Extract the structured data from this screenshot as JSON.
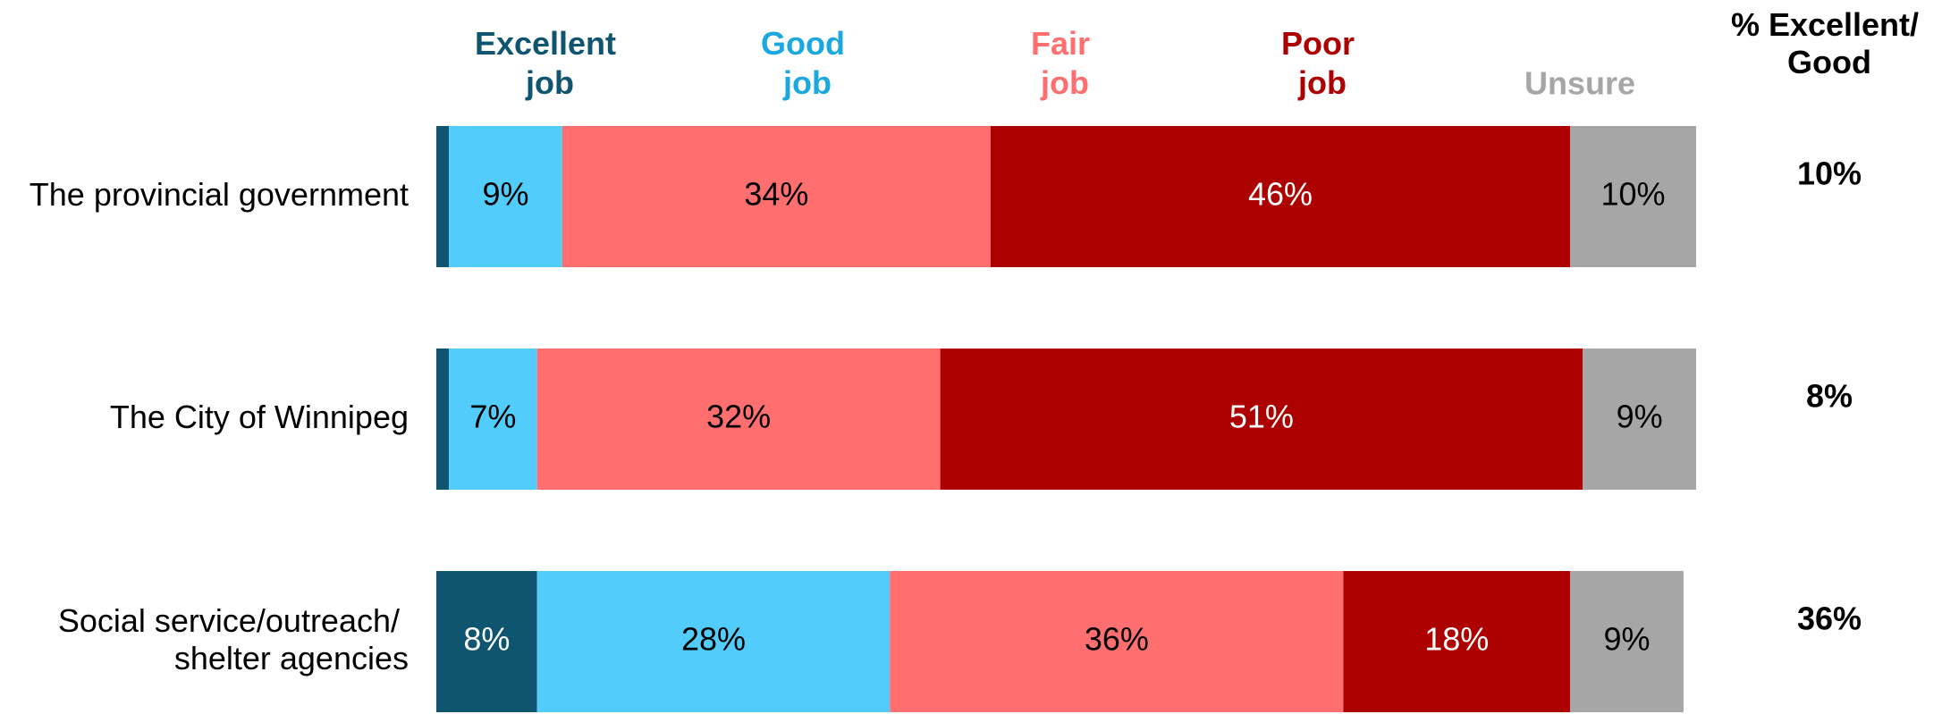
{
  "chart_data": {
    "type": "stacked-bar-horizontal",
    "categories": [
      "The provincial government",
      "The City of Winnipeg",
      "Social service/outreach/ shelter agencies"
    ],
    "series": [
      {
        "name": "Excellent job",
        "color": "#0f5570",
        "values": [
          1,
          1,
          8
        ],
        "value_labels": [
          null,
          null,
          "8%"
        ]
      },
      {
        "name": "Good job",
        "color": "#52cdfb",
        "values": [
          9,
          7,
          28
        ],
        "value_labels": [
          "9%",
          "7%",
          "28%"
        ]
      },
      {
        "name": "Fair job",
        "color": "#ff6f6f",
        "values": [
          34,
          32,
          36
        ],
        "value_labels": [
          "34%",
          "32%",
          "36%"
        ]
      },
      {
        "name": "Poor job",
        "color": "#ad0000",
        "values": [
          46,
          51,
          18
        ],
        "value_labels": [
          "46%",
          "51%",
          "18%"
        ]
      },
      {
        "name": "Unsure",
        "color": "#a6a6a6",
        "values": [
          10,
          9,
          9
        ],
        "value_labels": [
          "10%",
          "9%",
          "9%"
        ]
      }
    ],
    "xlim": [
      0,
      100
    ],
    "summary": {
      "title": "% Excellent/ Good",
      "values": [
        10,
        8,
        36
      ],
      "value_labels": [
        "10%",
        "8%",
        "36%"
      ]
    }
  }
}
